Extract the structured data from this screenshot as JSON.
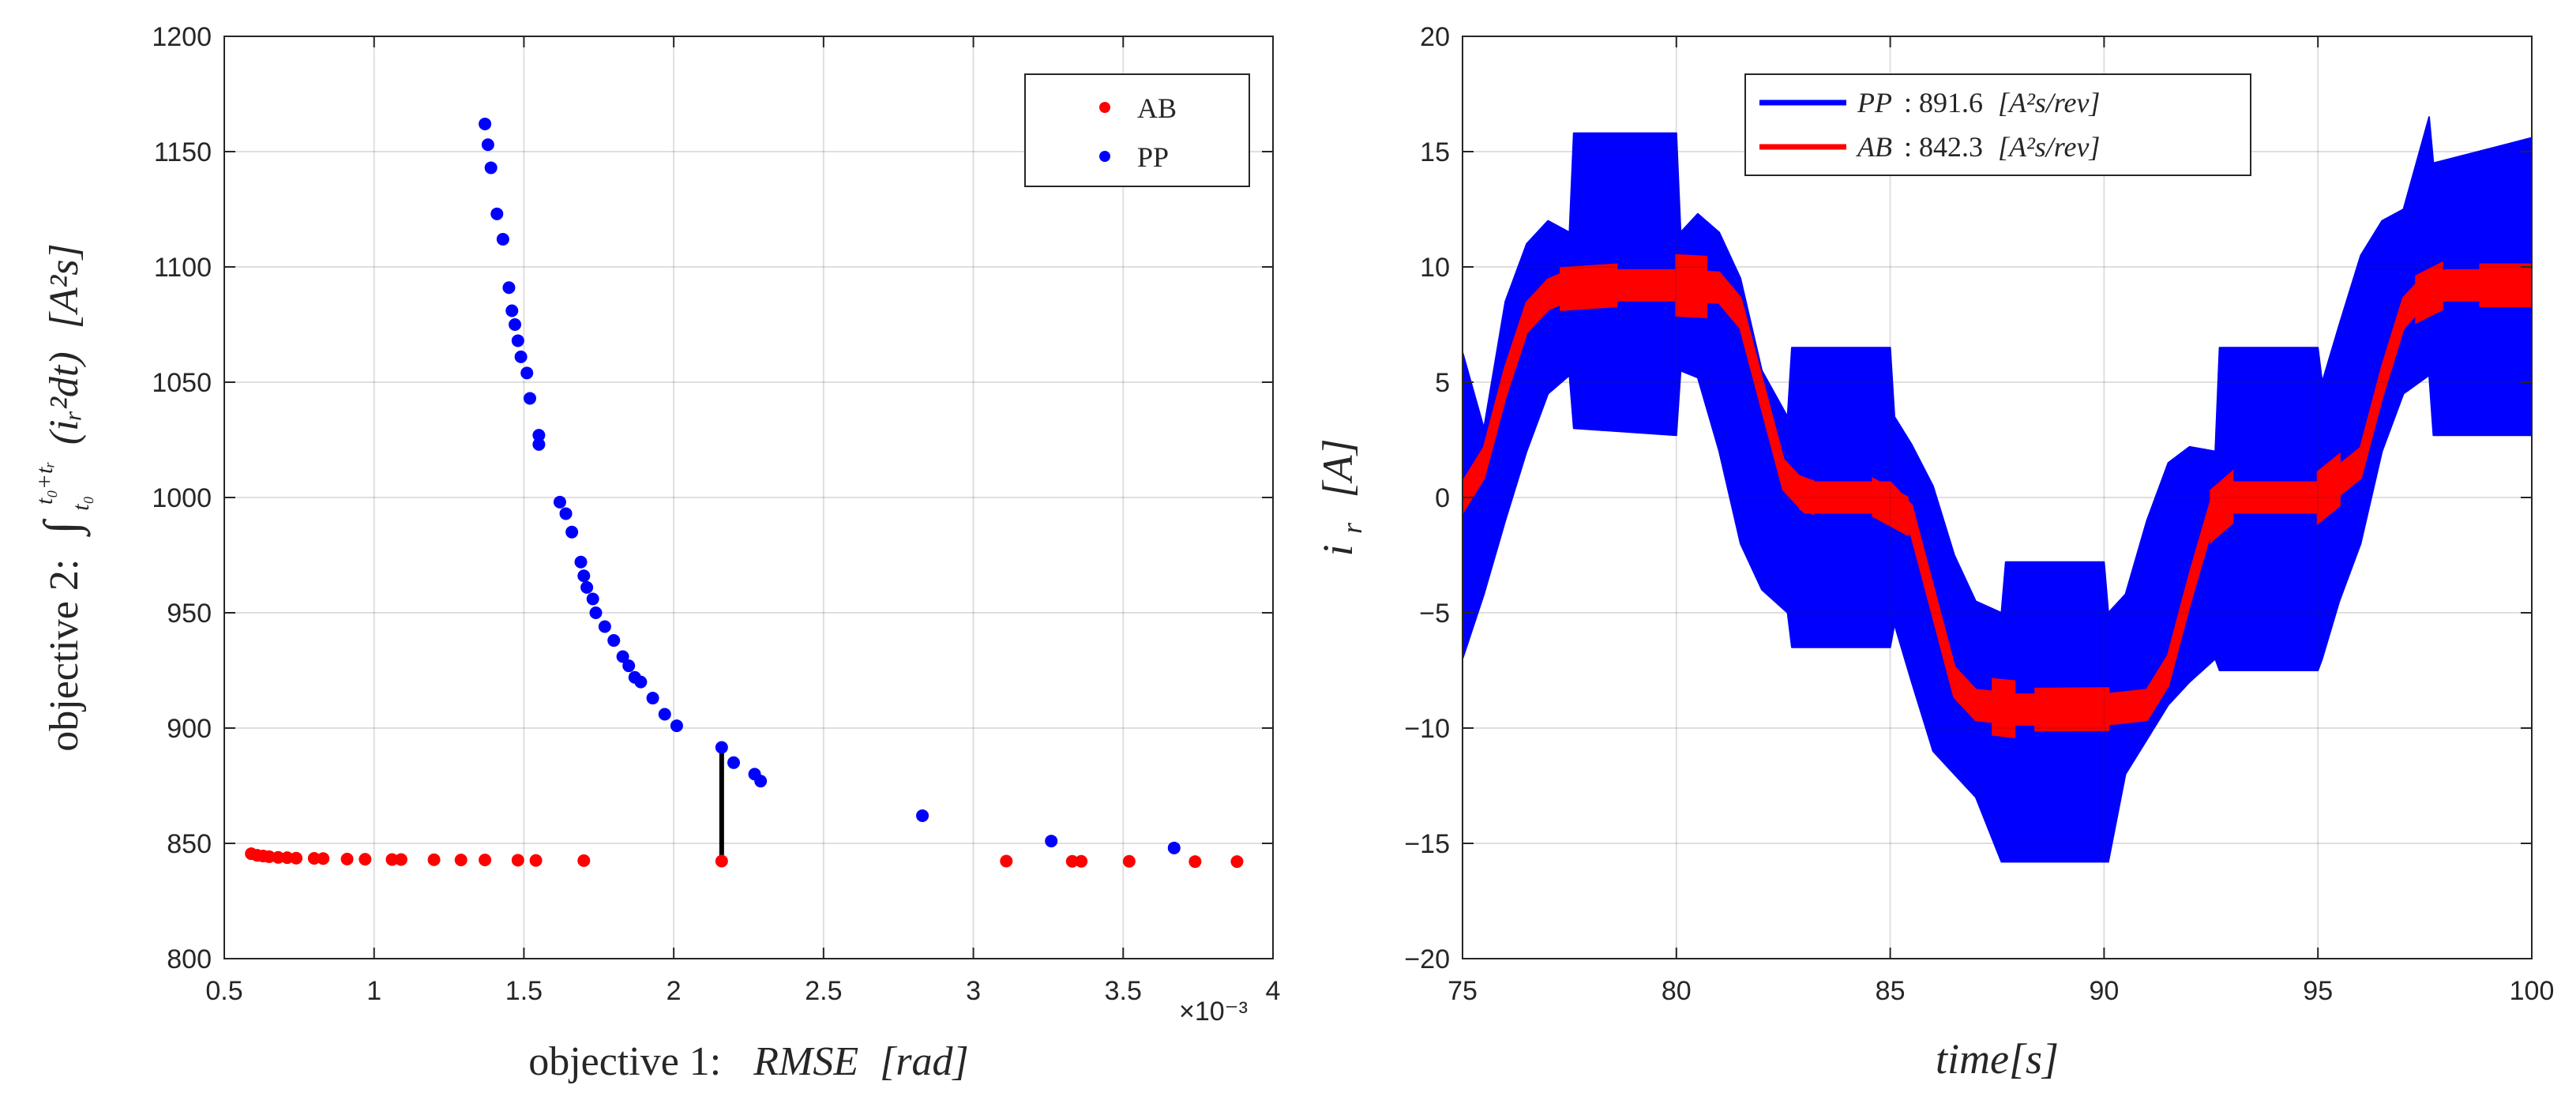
{
  "chart_data": [
    {
      "type": "scatter",
      "xlabel": "objective 1:   RMSE [rad]",
      "xlabel_parts": {
        "prefix": "objective 1:",
        "quantity": "RMSE",
        "unit": "[rad]"
      },
      "ylabel": "objective 2:  ∫_{t0}^{t0+tr} (i_r^2 dt) [A^2 s]",
      "ylabel_parts": {
        "prefix": "objective 2:",
        "integral": "∫",
        "lower": "t₀",
        "upper": "t₀+tᵣ",
        "integrand": "(iᵣ²dt)",
        "unit": "[A²s]"
      },
      "x_exponent_label": "×10⁻³",
      "xlim": [
        0.5,
        4
      ],
      "ylim": [
        800,
        1200
      ],
      "xticks": [
        0.5,
        1,
        1.5,
        2,
        2.5,
        3,
        3.5,
        4
      ],
      "xtick_labels": [
        "0.5",
        "1",
        "1.5",
        "2",
        "2.5",
        "3",
        "3.5",
        "4"
      ],
      "yticks": [
        800,
        850,
        900,
        950,
        1000,
        1050,
        1100,
        1150,
        1200
      ],
      "ytick_labels": [
        "800",
        "850",
        "900",
        "950",
        "1000",
        "1050",
        "1100",
        "1150",
        "1200"
      ],
      "grid": true,
      "legend_position": "top-right",
      "series": [
        {
          "name": "AB",
          "color": "#ff0000",
          "x": [
            0.59,
            0.61,
            0.63,
            0.65,
            0.68,
            0.71,
            0.74,
            0.8,
            0.83,
            0.91,
            0.97,
            1.06,
            1.09,
            1.2,
            1.29,
            1.37,
            1.48,
            1.54,
            1.7,
            2.16,
            3.11,
            3.33,
            3.36,
            3.52,
            3.74,
            3.88
          ],
          "y": [
            845.5,
            844.8,
            844.5,
            844.2,
            843.9,
            843.8,
            843.6,
            843.5,
            843.4,
            843.2,
            843.1,
            843.0,
            843.0,
            842.9,
            842.8,
            842.8,
            842.7,
            842.6,
            842.5,
            842.3,
            842.3,
            842.2,
            842.2,
            842.2,
            842.1,
            842.1
          ]
        },
        {
          "name": "PP",
          "color": "#0000ff",
          "x": [
            1.37,
            1.38,
            1.39,
            1.41,
            1.43,
            1.45,
            1.46,
            1.47,
            1.48,
            1.49,
            1.51,
            1.52,
            1.55,
            1.55,
            1.62,
            1.64,
            1.66,
            1.69,
            1.7,
            1.71,
            1.73,
            1.74,
            1.77,
            1.8,
            1.83,
            1.85,
            1.87,
            1.89,
            1.93,
            1.97,
            2.01,
            2.16,
            2.2,
            2.27,
            2.29,
            2.83,
            3.26,
            3.67
          ],
          "y": [
            1162,
            1153,
            1143,
            1123,
            1112,
            1091,
            1081,
            1075,
            1068,
            1061,
            1054,
            1043,
            1027,
            1023,
            998,
            993,
            985,
            972,
            966,
            961,
            956,
            950,
            944,
            938,
            931,
            927,
            922,
            920,
            913,
            906,
            901,
            891.6,
            885,
            880,
            877,
            862,
            851,
            848
          ]
        }
      ],
      "annotation": {
        "type": "vertical-segment",
        "x": 2.16,
        "y_from": 842.3,
        "y_to": 891.6,
        "color": "#000000"
      }
    },
    {
      "type": "line",
      "xlabel": "time[s]",
      "ylabel": "i_r [A]",
      "ylabel_parts": {
        "symbol": "i",
        "sub": "r",
        "unit": "[A]"
      },
      "xlim": [
        75,
        100
      ],
      "ylim": [
        -20,
        20
      ],
      "xticks": [
        75,
        80,
        85,
        90,
        95,
        100
      ],
      "xtick_labels": [
        "75",
        "80",
        "85",
        "90",
        "95",
        "100"
      ],
      "yticks": [
        -20,
        -15,
        -10,
        -5,
        0,
        5,
        10,
        15,
        20
      ],
      "ytick_labels": [
        "−20",
        "−15",
        "−10",
        "−5",
        "0",
        "5",
        "10",
        "15",
        "20"
      ],
      "grid": true,
      "legend_position": "top-center",
      "series": [
        {
          "name": "PP : 891.6 [A²s/rev]",
          "legend_symbol": "PP",
          "legend_value": ": 891.6",
          "legend_unit": "[A²s/rev]",
          "color": "#0000ff",
          "style": "envelope",
          "x": [
            75.0,
            75.5,
            76.0,
            76.5,
            77.0,
            77.5,
            77.6,
            80.0,
            80.1,
            80.5,
            81.0,
            81.5,
            82.0,
            82.6,
            82.7,
            85.0,
            85.1,
            85.5,
            86.0,
            86.5,
            87.0,
            87.6,
            87.7,
            90.0,
            90.1,
            90.5,
            91.0,
            91.5,
            92.0,
            92.6,
            92.7,
            95.0,
            95.1,
            95.5,
            96.0,
            96.5,
            97.0,
            97.6,
            97.7,
            100.0
          ],
          "upper": [
            6.3,
            3.0,
            8.5,
            11.0,
            12.0,
            11.5,
            15.8,
            15.8,
            11.5,
            12.3,
            11.5,
            9.5,
            5.5,
            3.5,
            6.5,
            6.5,
            3.5,
            2.3,
            0.5,
            -2.5,
            -4.5,
            -5.0,
            -2.8,
            -2.8,
            -5.0,
            -4.2,
            -1.0,
            1.5,
            2.2,
            2.0,
            6.5,
            6.5,
            5.0,
            7.5,
            10.5,
            12.0,
            12.5,
            16.5,
            14.5,
            15.6
          ],
          "lower": [
            -7.0,
            -4.2,
            -1.0,
            2.0,
            4.5,
            5.3,
            3.0,
            2.7,
            5.5,
            5.2,
            2.0,
            -2.0,
            -4.0,
            -5.0,
            -6.5,
            -6.5,
            -5.5,
            -8.0,
            -11.0,
            -12.0,
            -13.0,
            -15.8,
            -15.8,
            -15.8,
            -15.8,
            -12.0,
            -10.5,
            -9.0,
            -8.0,
            -7.0,
            -7.5,
            -7.5,
            -7.0,
            -4.5,
            -2.0,
            2.0,
            4.5,
            5.3,
            2.7,
            2.7
          ]
        },
        {
          "name": "AB : 842.3 [A²s/rev]",
          "legend_symbol": "AB",
          "legend_value": ": 842.3",
          "legend_unit": "[A²s/rev]",
          "color": "#ff0000",
          "style": "band",
          "x": [
            75.0,
            75.5,
            76.0,
            76.5,
            77.0,
            77.5,
            78.0,
            80.0,
            81.0,
            81.5,
            82.0,
            82.5,
            83.0,
            85.0,
            85.5,
            86.0,
            86.5,
            87.0,
            88.0,
            90.0,
            91.0,
            91.5,
            92.0,
            92.5,
            93.0,
            95.0,
            96.0,
            96.5,
            97.0,
            97.5,
            98.0,
            100.0
          ],
          "y": [
            0.0,
            1.5,
            5.0,
            7.8,
            8.8,
            9.2,
            9.2,
            9.2,
            9.1,
            8.0,
            4.5,
            1.0,
            0.0,
            0.0,
            -1.0,
            -4.5,
            -8.0,
            -9.0,
            -9.2,
            -9.2,
            -9.0,
            -7.5,
            -4.0,
            -0.8,
            0.0,
            0.0,
            1.5,
            5.0,
            8.0,
            9.0,
            9.2,
            9.2
          ],
          "band_halfwidth": 0.65,
          "bursts": [
            {
              "t0": 77.3,
              "t1": 78.6,
              "amp": 0.9
            },
            {
              "t0": 80.0,
              "t1": 80.7,
              "amp": 1.3
            },
            {
              "t0": 82.9,
              "t1": 83.2,
              "amp": 0.7
            },
            {
              "t0": 84.6,
              "t1": 85.4,
              "amp": 0.8
            },
            {
              "t0": 87.4,
              "t1": 87.9,
              "amp": 1.2
            },
            {
              "t0": 88.4,
              "t1": 90.1,
              "amp": 0.9
            },
            {
              "t0": 92.5,
              "t1": 93.0,
              "amp": 1.1
            },
            {
              "t0": 95.0,
              "t1": 95.5,
              "amp": 1.1
            },
            {
              "t0": 97.3,
              "t1": 97.9,
              "amp": 1.0
            },
            {
              "t0": 98.8,
              "t1": 100.0,
              "amp": 0.9
            }
          ]
        }
      ]
    }
  ]
}
